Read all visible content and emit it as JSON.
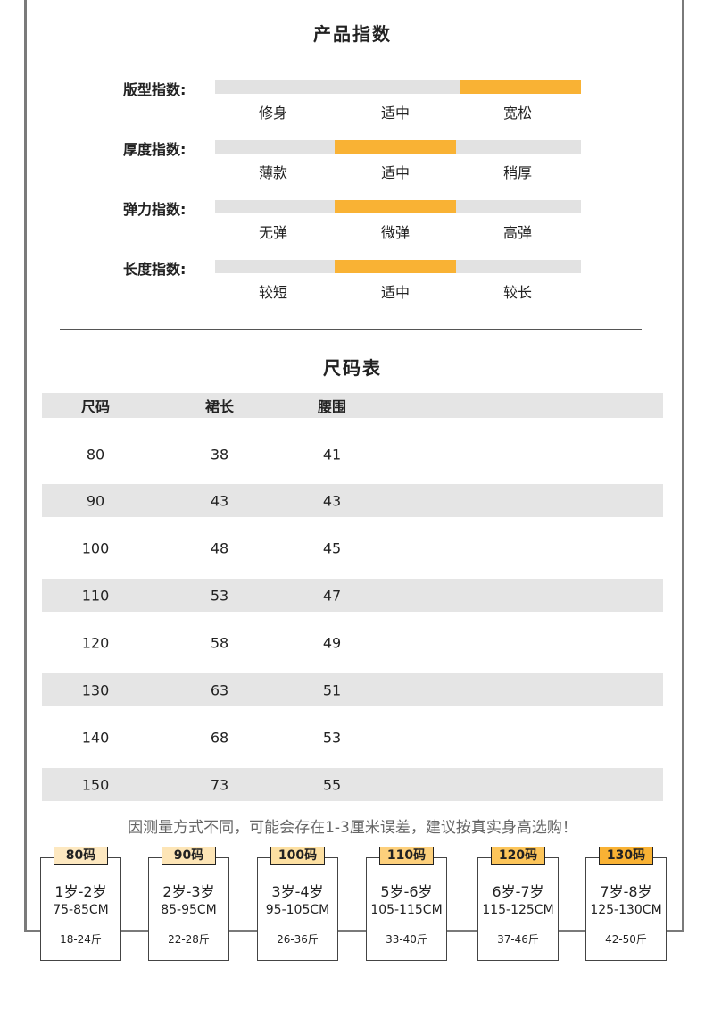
{
  "product_index": {
    "title": "产品指数",
    "accent": "#f9b234",
    "rows": [
      {
        "label": "版型指数:",
        "options": [
          "修身",
          "适中",
          "宽松"
        ],
        "selected": 2
      },
      {
        "label": "厚度指数:",
        "options": [
          "薄款",
          "适中",
          "稍厚"
        ],
        "selected": 1
      },
      {
        "label": "弹力指数:",
        "options": [
          "无弹",
          "微弹",
          "高弹"
        ],
        "selected": 1
      },
      {
        "label": "长度指数:",
        "options": [
          "较短",
          "适中",
          "较长"
        ],
        "selected": 1
      }
    ]
  },
  "size_table": {
    "title": "尺码表",
    "headers": [
      "尺码",
      "裙长",
      "腰围"
    ],
    "rows": [
      [
        "80",
        "38",
        "41"
      ],
      [
        "90",
        "43",
        "43"
      ],
      [
        "100",
        "48",
        "45"
      ],
      [
        "110",
        "53",
        "47"
      ],
      [
        "120",
        "58",
        "49"
      ],
      [
        "130",
        "63",
        "51"
      ],
      [
        "140",
        "68",
        "53"
      ],
      [
        "150",
        "73",
        "55"
      ]
    ]
  },
  "note": "因测量方式不同，可能会存在1-3厘米误差，建议按真实身高选购！",
  "size_cards": [
    {
      "tag": "80码",
      "age": "1岁-2岁",
      "height": "75-85CM",
      "weight": "18-24斤",
      "color": "#fde8c0"
    },
    {
      "tag": "90码",
      "age": "2岁-3岁",
      "height": "85-95CM",
      "weight": "22-28斤",
      "color": "#fde5b6"
    },
    {
      "tag": "100码",
      "age": "3岁-4岁",
      "height": "95-105CM",
      "weight": "26-36斤",
      "color": "#fde0a2"
    },
    {
      "tag": "110码",
      "age": "5岁-6岁",
      "height": "105-115CM",
      "weight": "33-40斤",
      "color": "#fdd07c"
    },
    {
      "tag": "120码",
      "age": "6岁-7岁",
      "height": "115-125CM",
      "weight": "37-46斤",
      "color": "#fcc55a"
    },
    {
      "tag": "130码",
      "age": "7岁-8岁",
      "height": "125-130CM",
      "weight": "42-50斤",
      "color": "#f9b234"
    }
  ]
}
